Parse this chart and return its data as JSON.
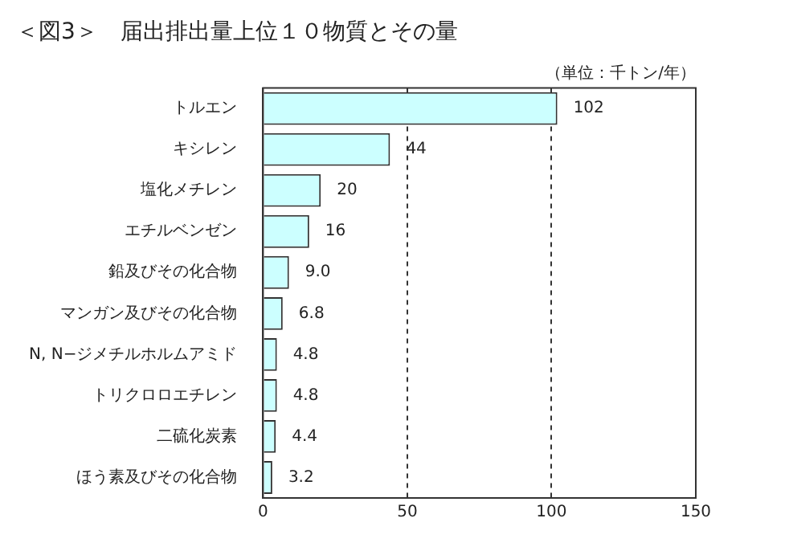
{
  "chart_data": {
    "type": "bar",
    "orientation": "horizontal",
    "title": "＜図3＞　届出排出量上位１０物質とその量",
    "annotations": [
      "（単位：千トン/年）"
    ],
    "categories": [
      "トルエン",
      "キシレン",
      "塩化メチレン",
      "エチルベンゼン",
      "鉛及びその化合物",
      "マンガン及びその化合物",
      "N, N−ジメチルホルムアミド",
      "トリクロロエチレン",
      "二硫化炭素",
      "ほう素及びその化合物"
    ],
    "values": [
      102,
      44,
      20,
      16,
      9.0,
      6.8,
      4.8,
      4.8,
      4.4,
      3.2
    ],
    "value_labels": [
      "102",
      "44",
      "20",
      "16",
      "9.0",
      "6.8",
      "4.8",
      "4.8",
      "4.4",
      "3.2"
    ],
    "color": "#ccffff",
    "xlim": [
      0,
      150
    ],
    "xticks": [
      0,
      50,
      100,
      150
    ],
    "grid": "x",
    "legend": false
  }
}
